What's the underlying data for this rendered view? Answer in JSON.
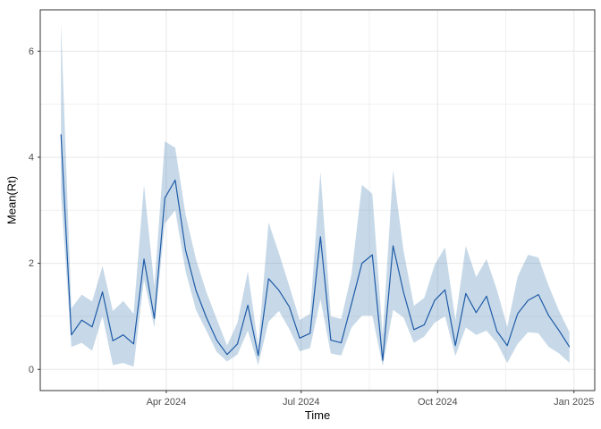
{
  "figure": {
    "xlabel": "Time",
    "ylabel": "Mean(Rt)"
  },
  "chart_data": {
    "type": "line",
    "title": "",
    "xlabel": "Time",
    "ylabel": "Mean(Rt)",
    "legend": "none",
    "grid": true,
    "x_tick_labels": [
      "Apr 2024",
      "Jul 2024",
      "Oct 2024",
      "Jan 2025"
    ],
    "x_tick_dates": [
      "2024-04-01",
      "2024-07-01",
      "2024-10-01",
      "2025-01-01"
    ],
    "x_minor_dates": [
      "2024-02-15",
      "2024-05-16",
      "2024-08-16",
      "2024-11-16"
    ],
    "y_ticks": [
      0,
      2,
      4,
      6
    ],
    "y_minor_ticks": [
      1,
      3,
      5
    ],
    "ylim": [
      -0.4,
      6.78
    ],
    "xlim": [
      "2024-01-07",
      "2025-01-15"
    ],
    "dates": [
      "2024-01-21",
      "2024-01-28",
      "2024-02-04",
      "2024-02-11",
      "2024-02-18",
      "2024-02-25",
      "2024-03-03",
      "2024-03-10",
      "2024-03-17",
      "2024-03-24",
      "2024-03-31",
      "2024-04-07",
      "2024-04-14",
      "2024-04-21",
      "2024-04-28",
      "2024-05-05",
      "2024-05-12",
      "2024-05-19",
      "2024-05-26",
      "2024-06-02",
      "2024-06-09",
      "2024-06-16",
      "2024-06-23",
      "2024-06-30",
      "2024-07-07",
      "2024-07-14",
      "2024-07-21",
      "2024-07-28",
      "2024-08-04",
      "2024-08-11",
      "2024-08-18",
      "2024-08-25",
      "2024-09-01",
      "2024-09-08",
      "2024-09-15",
      "2024-09-22",
      "2024-09-29",
      "2024-10-06",
      "2024-10-13",
      "2024-10-20",
      "2024-10-27",
      "2024-11-03",
      "2024-11-10",
      "2024-11-17",
      "2024-11-24",
      "2024-12-01",
      "2024-12-08",
      "2024-12-15",
      "2024-12-22",
      "2024-12-29"
    ],
    "series": [
      {
        "name": "mean_rt",
        "values": [
          4.43,
          0.65,
          0.93,
          0.8,
          1.46,
          0.54,
          0.65,
          0.48,
          2.08,
          0.96,
          3.23,
          3.57,
          2.25,
          1.49,
          0.98,
          0.55,
          0.28,
          0.48,
          1.21,
          0.26,
          1.71,
          1.49,
          1.18,
          0.59,
          0.68,
          2.5,
          0.55,
          0.5,
          1.24,
          2.0,
          2.16,
          0.17,
          2.33,
          1.46,
          0.75,
          0.84,
          1.3,
          1.5,
          0.45,
          1.43,
          1.07,
          1.38,
          0.72,
          0.45,
          1.05,
          1.3,
          1.41,
          1.01,
          0.73,
          0.42
        ]
      },
      {
        "name": "ci_lower",
        "values": [
          3.3,
          0.42,
          0.5,
          0.35,
          1.0,
          0.08,
          0.12,
          0.05,
          1.69,
          0.79,
          2.75,
          3.0,
          1.85,
          1.12,
          0.73,
          0.33,
          0.15,
          0.28,
          0.73,
          0.08,
          0.9,
          1.1,
          0.76,
          0.34,
          0.4,
          1.32,
          0.3,
          0.26,
          0.79,
          1.01,
          1.01,
          0.06,
          1.12,
          0.98,
          0.5,
          0.62,
          0.88,
          1.0,
          0.25,
          0.79,
          0.65,
          0.73,
          0.5,
          0.12,
          0.48,
          0.7,
          0.68,
          0.42,
          0.3,
          0.12
        ]
      },
      {
        "name": "ci_upper",
        "values": [
          6.54,
          1.15,
          1.41,
          1.28,
          1.95,
          1.1,
          1.29,
          1.05,
          3.48,
          1.57,
          4.3,
          4.18,
          2.92,
          2.08,
          1.46,
          0.95,
          0.45,
          0.88,
          1.85,
          0.45,
          2.77,
          2.19,
          1.57,
          0.93,
          1.05,
          3.73,
          1.0,
          0.95,
          1.8,
          3.48,
          3.31,
          0.65,
          3.76,
          2.25,
          1.2,
          1.35,
          1.97,
          2.3,
          0.93,
          2.33,
          1.74,
          2.08,
          1.5,
          0.8,
          1.75,
          2.16,
          2.11,
          1.57,
          1.1,
          0.7
        ]
      }
    ],
    "colors": {
      "line": "#1f5ba8",
      "ribbon_base": "#4682b4",
      "ribbon_alpha": 0.3,
      "grid_major": "#e7e7e7",
      "grid_minor": "#f1f1f1",
      "panel_border": "#333333",
      "axis_text": "#4d4d4d",
      "background": "#ffffff"
    }
  }
}
